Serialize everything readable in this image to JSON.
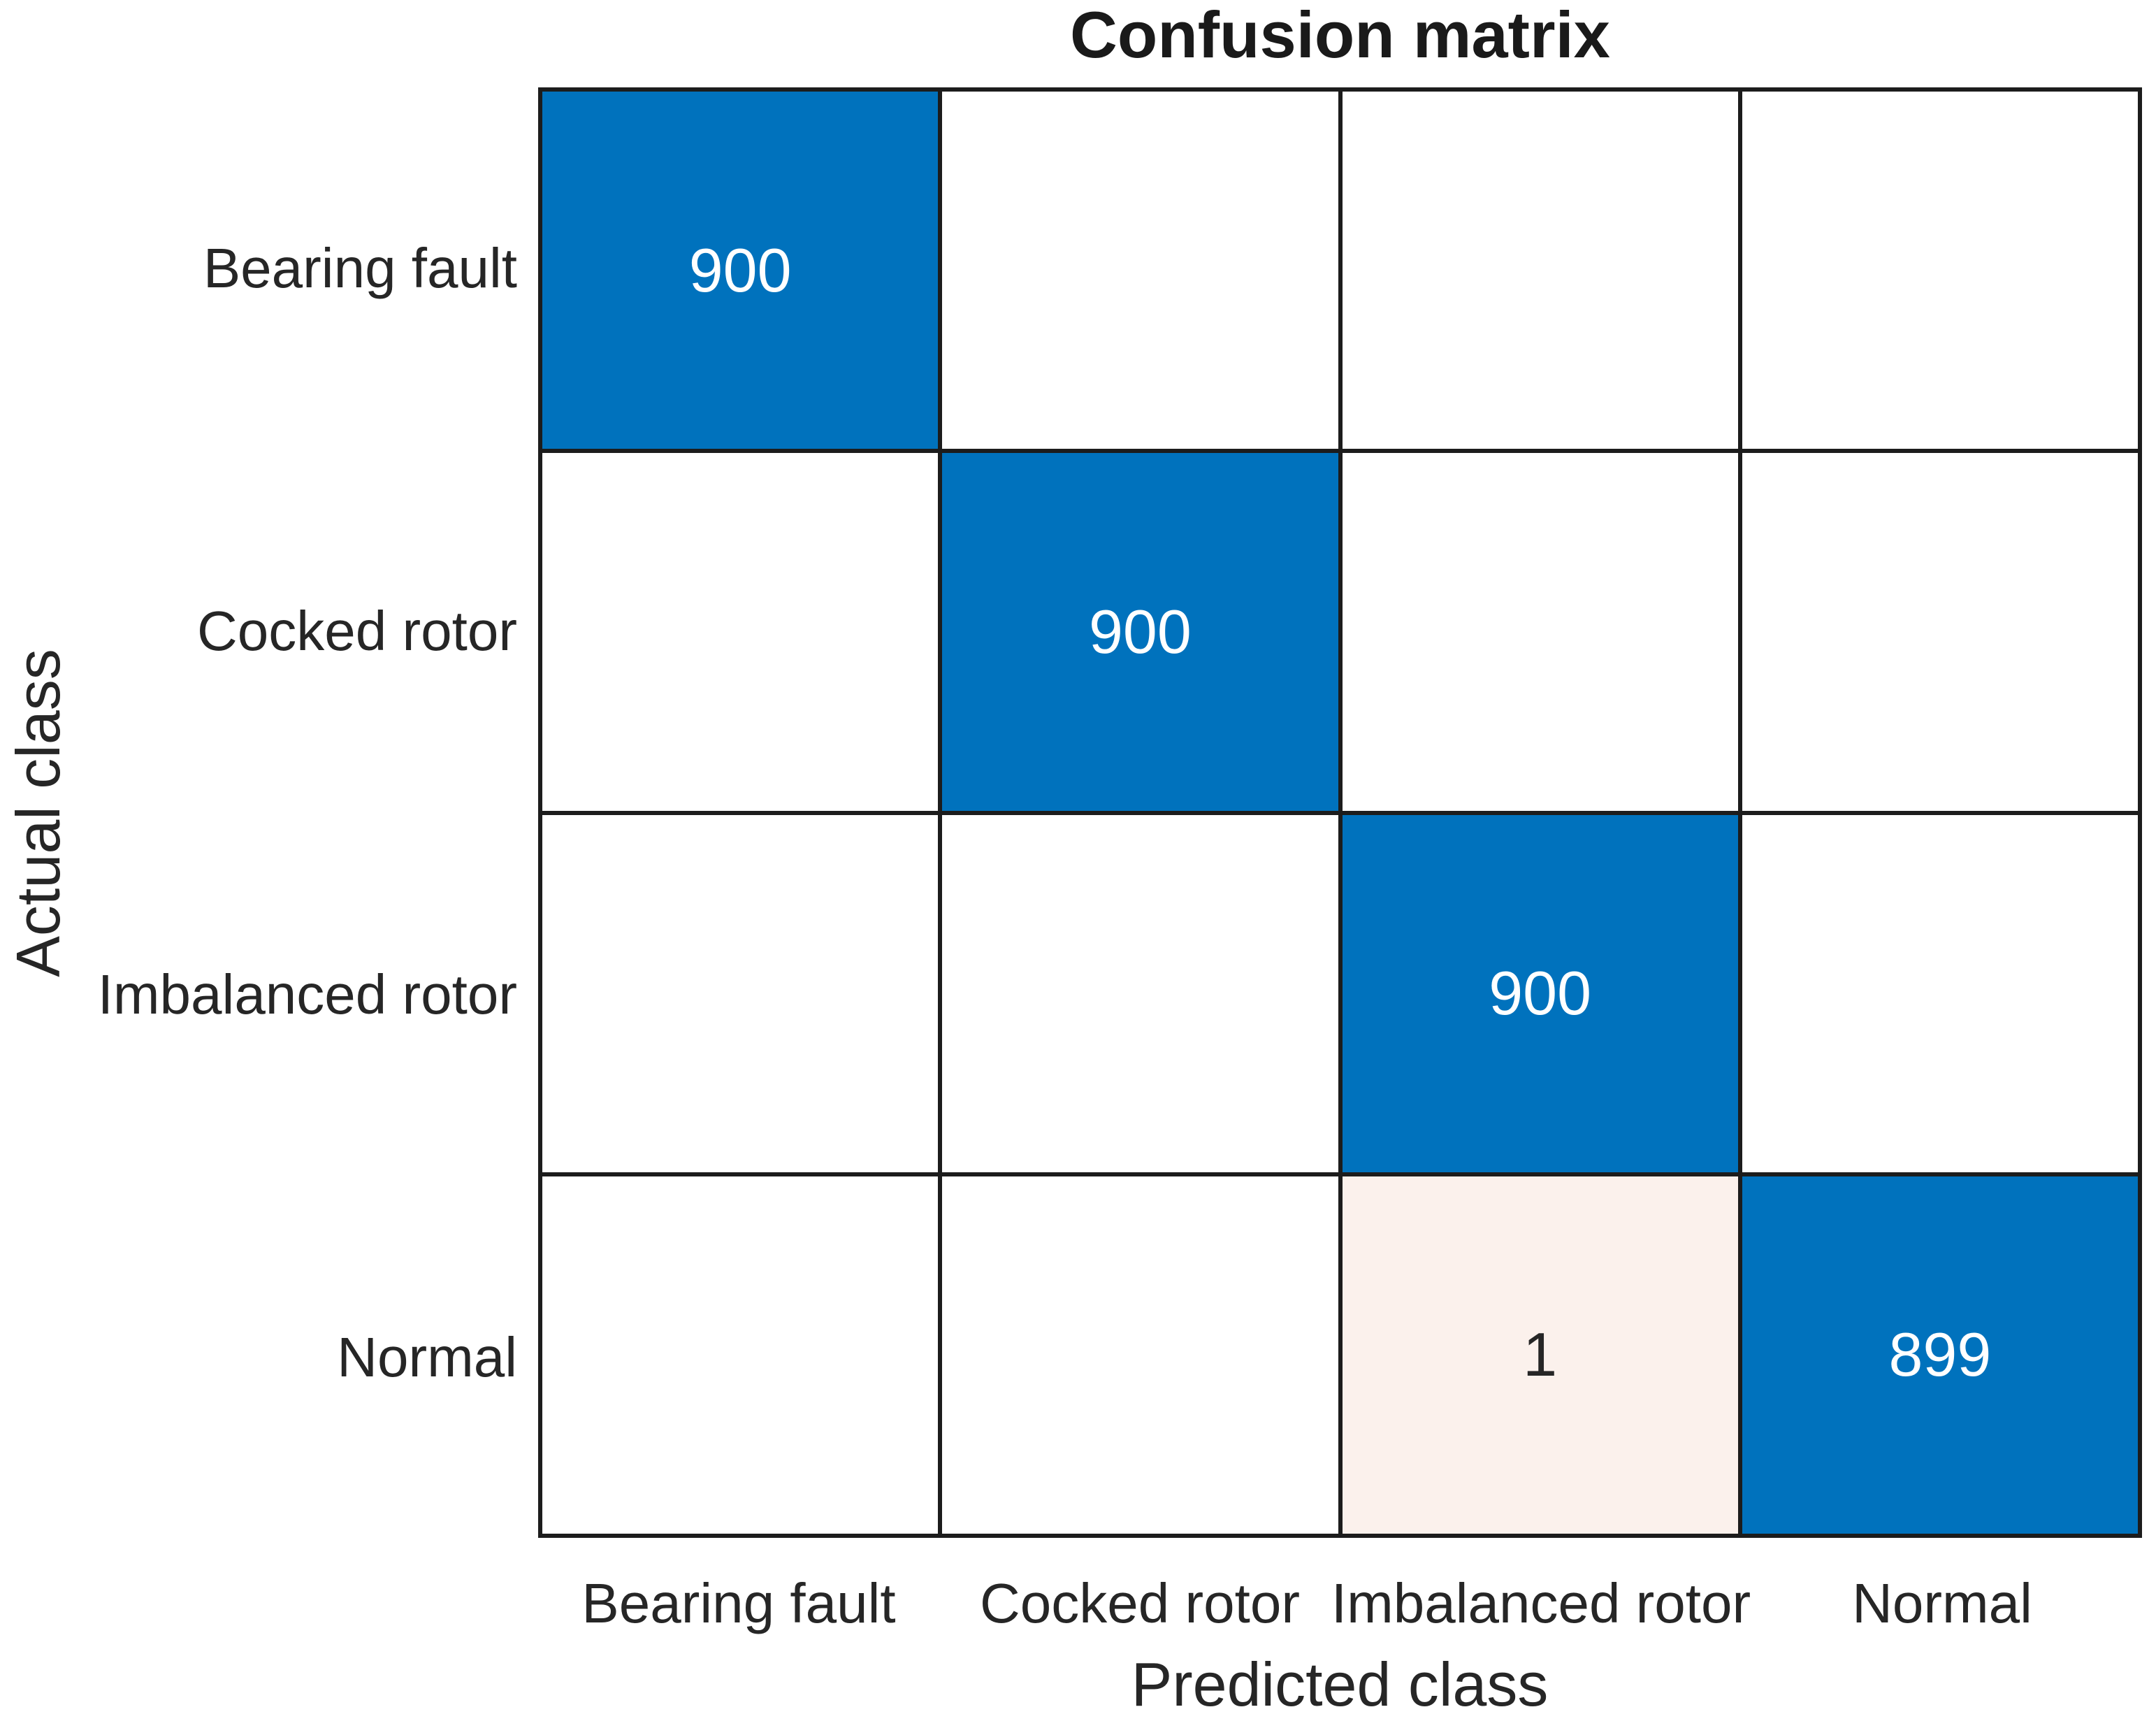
{
  "figure": {
    "title": "Confusion matrix",
    "x_axis_label": "Predicted class",
    "y_axis_label": "Actual class"
  },
  "classes": [
    "Bearing fault",
    "Cocked rotor",
    "Imbalanced rotor",
    "Normal"
  ],
  "colors": {
    "diagonal_cell": "#0072BD",
    "offdiagonal_nonzero_cell": "#FBF1EC",
    "zero_cell": "#FFFFFF",
    "grid_line": "#1C1C1C",
    "value_text_on_blue": "#FFFFFF",
    "value_text_on_light": "#262626",
    "label_text": "#262626"
  },
  "chart_data": {
    "type": "heatmap",
    "title": "Confusion matrix",
    "xlabel": "Predicted class",
    "ylabel": "Actual class",
    "x_categories": [
      "Bearing fault",
      "Cocked rotor",
      "Imbalanced rotor",
      "Normal"
    ],
    "y_categories": [
      "Bearing fault",
      "Cocked rotor",
      "Imbalanced rotor",
      "Normal"
    ],
    "matrix": [
      [
        900,
        0,
        0,
        0
      ],
      [
        0,
        900,
        0,
        0
      ],
      [
        0,
        0,
        900,
        0
      ],
      [
        0,
        0,
        1,
        899
      ]
    ],
    "cell_value_display_rule": "zeros shown as empty cells",
    "legend_position": "none",
    "grid": true
  }
}
